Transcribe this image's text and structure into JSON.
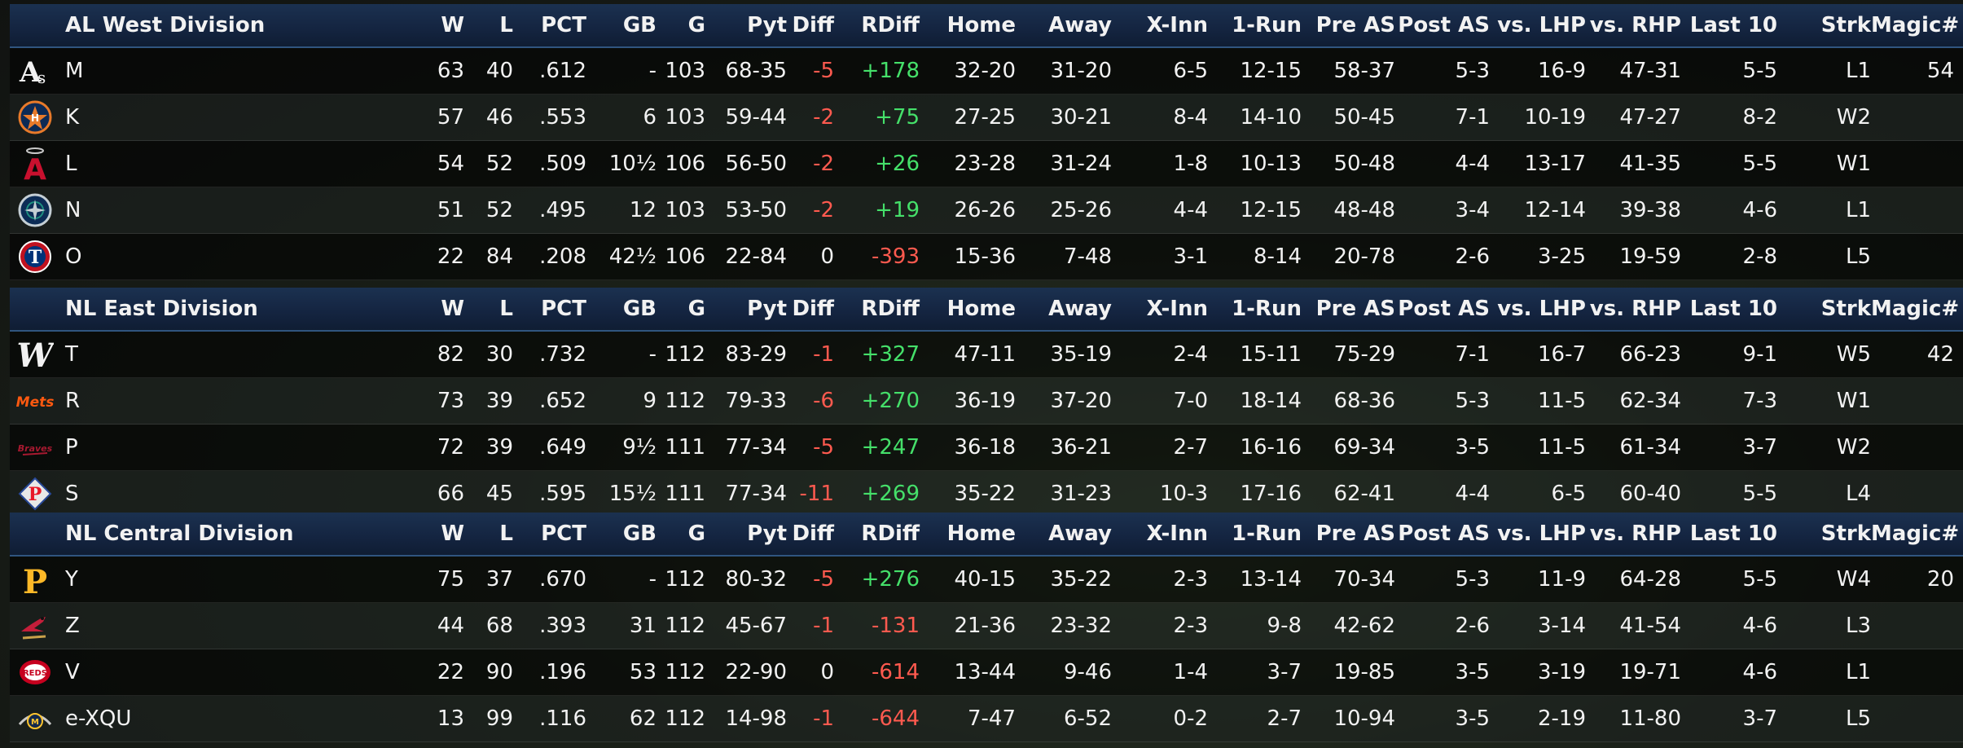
{
  "columns": {
    "w": "W",
    "l": "L",
    "pct": "PCT",
    "gb": "GB",
    "g": "G",
    "pyt": "Pyt",
    "diff": "Diff",
    "rdiff": "RDiff",
    "home": "Home",
    "away": "Away",
    "xinn": "X-Inn",
    "onerun": "1-Run",
    "preas": "Pre AS",
    "postas": "Post AS",
    "vlhp": "vs. LHP",
    "vrhp": "vs. RHP",
    "last10": "Last 10",
    "strk": "Strk",
    "magic": "Magic#"
  },
  "divisions": [
    {
      "name": "AL West Division",
      "teams": [
        {
          "logo": "athletics-logo",
          "name": "M",
          "w": "63",
          "l": "40",
          "pct": ".612",
          "gb": "-",
          "g": "103",
          "pyt": "68-35",
          "diff": "-5",
          "rdiff": "+178",
          "home": "32-20",
          "away": "31-20",
          "xinn": "6-5",
          "onerun": "12-15",
          "preas": "58-37",
          "postas": "5-3",
          "vlhp": "16-9",
          "vrhp": "47-31",
          "last10": "5-5",
          "strk": "L1",
          "magic": "54"
        },
        {
          "logo": "astros-logo",
          "name": "K",
          "w": "57",
          "l": "46",
          "pct": ".553",
          "gb": "6",
          "g": "103",
          "pyt": "59-44",
          "diff": "-2",
          "rdiff": "+75",
          "home": "27-25",
          "away": "30-21",
          "xinn": "8-4",
          "onerun": "14-10",
          "preas": "50-45",
          "postas": "7-1",
          "vlhp": "10-19",
          "vrhp": "47-27",
          "last10": "8-2",
          "strk": "W2",
          "magic": ""
        },
        {
          "logo": "angels-logo",
          "name": "L",
          "w": "54",
          "l": "52",
          "pct": ".509",
          "gb": "10½",
          "g": "106",
          "pyt": "56-50",
          "diff": "-2",
          "rdiff": "+26",
          "home": "23-28",
          "away": "31-24",
          "xinn": "1-8",
          "onerun": "10-13",
          "preas": "50-48",
          "postas": "4-4",
          "vlhp": "13-17",
          "vrhp": "41-35",
          "last10": "5-5",
          "strk": "W1",
          "magic": ""
        },
        {
          "logo": "mariners-logo",
          "name": "N",
          "w": "51",
          "l": "52",
          "pct": ".495",
          "gb": "12",
          "g": "103",
          "pyt": "53-50",
          "diff": "-2",
          "rdiff": "+19",
          "home": "26-26",
          "away": "25-26",
          "xinn": "4-4",
          "onerun": "12-15",
          "preas": "48-48",
          "postas": "3-4",
          "vlhp": "12-14",
          "vrhp": "39-38",
          "last10": "4-6",
          "strk": "L1",
          "magic": ""
        },
        {
          "logo": "rangers-logo",
          "name": "O",
          "w": "22",
          "l": "84",
          "pct": ".208",
          "gb": "42½",
          "g": "106",
          "pyt": "22-84",
          "diff": "0",
          "rdiff": "-393",
          "home": "15-36",
          "away": "7-48",
          "xinn": "3-1",
          "onerun": "8-14",
          "preas": "20-78",
          "postas": "2-6",
          "vlhp": "3-25",
          "vrhp": "19-59",
          "last10": "2-8",
          "strk": "L5",
          "magic": ""
        }
      ]
    },
    {
      "name": "NL East Division",
      "teams": [
        {
          "logo": "nationals-logo",
          "name": "T",
          "w": "82",
          "l": "30",
          "pct": ".732",
          "gb": "-",
          "g": "112",
          "pyt": "83-29",
          "diff": "-1",
          "rdiff": "+327",
          "home": "47-11",
          "away": "35-19",
          "xinn": "2-4",
          "onerun": "15-11",
          "preas": "75-29",
          "postas": "7-1",
          "vlhp": "16-7",
          "vrhp": "66-23",
          "last10": "9-1",
          "strk": "W5",
          "magic": "42"
        },
        {
          "logo": "mets-logo",
          "name": "R",
          "w": "73",
          "l": "39",
          "pct": ".652",
          "gb": "9",
          "g": "112",
          "pyt": "79-33",
          "diff": "-6",
          "rdiff": "+270",
          "home": "36-19",
          "away": "37-20",
          "xinn": "7-0",
          "onerun": "18-14",
          "preas": "68-36",
          "postas": "5-3",
          "vlhp": "11-5",
          "vrhp": "62-34",
          "last10": "7-3",
          "strk": "W1",
          "magic": ""
        },
        {
          "logo": "braves-logo",
          "name": "P",
          "w": "72",
          "l": "39",
          "pct": ".649",
          "gb": "9½",
          "g": "111",
          "pyt": "77-34",
          "diff": "-5",
          "rdiff": "+247",
          "home": "36-18",
          "away": "36-21",
          "xinn": "2-7",
          "onerun": "16-16",
          "preas": "69-34",
          "postas": "3-5",
          "vlhp": "11-5",
          "vrhp": "61-34",
          "last10": "3-7",
          "strk": "W2",
          "magic": ""
        },
        {
          "logo": "phillies-logo",
          "name": "S",
          "w": "66",
          "l": "45",
          "pct": ".595",
          "gb": "15½",
          "g": "111",
          "pyt": "77-34",
          "diff": "-11",
          "rdiff": "+269",
          "home": "35-22",
          "away": "31-23",
          "xinn": "10-3",
          "onerun": "17-16",
          "preas": "62-41",
          "postas": "4-4",
          "vlhp": "6-5",
          "vrhp": "60-40",
          "last10": "5-5",
          "strk": "L4",
          "magic": ""
        }
      ]
    },
    {
      "name": "NL Central Division",
      "teams": [
        {
          "logo": "pirates-logo",
          "name": "Y",
          "w": "75",
          "l": "37",
          "pct": ".670",
          "gb": "-",
          "g": "112",
          "pyt": "80-32",
          "diff": "-5",
          "rdiff": "+276",
          "home": "40-15",
          "away": "35-22",
          "xinn": "2-3",
          "onerun": "13-14",
          "preas": "70-34",
          "postas": "5-3",
          "vlhp": "11-9",
          "vrhp": "64-28",
          "last10": "5-5",
          "strk": "W4",
          "magic": "20"
        },
        {
          "logo": "cardinals-logo",
          "name": "Z",
          "w": "44",
          "l": "68",
          "pct": ".393",
          "gb": "31",
          "g": "112",
          "pyt": "45-67",
          "diff": "-1",
          "rdiff": "-131",
          "home": "21-36",
          "away": "23-32",
          "xinn": "2-3",
          "onerun": "9-8",
          "preas": "42-62",
          "postas": "2-6",
          "vlhp": "3-14",
          "vrhp": "41-54",
          "last10": "4-6",
          "strk": "L3",
          "magic": ""
        },
        {
          "logo": "reds-logo",
          "name": "V",
          "w": "22",
          "l": "90",
          "pct": ".196",
          "gb": "53",
          "g": "112",
          "pyt": "22-90",
          "diff": "0",
          "rdiff": "-614",
          "home": "13-44",
          "away": "9-46",
          "xinn": "1-4",
          "onerun": "3-7",
          "preas": "19-85",
          "postas": "3-5",
          "vlhp": "3-19",
          "vrhp": "19-71",
          "last10": "4-6",
          "strk": "L1",
          "magic": ""
        },
        {
          "logo": "brewers-logo",
          "name": "e-XQU",
          "w": "13",
          "l": "99",
          "pct": ".116",
          "gb": "62",
          "g": "112",
          "pyt": "14-98",
          "diff": "-1",
          "rdiff": "-644",
          "home": "7-47",
          "away": "6-52",
          "xinn": "0-2",
          "onerun": "2-7",
          "preas": "10-94",
          "postas": "3-5",
          "vlhp": "2-19",
          "vrhp": "11-80",
          "last10": "3-7",
          "strk": "L5",
          "magic": ""
        }
      ]
    }
  ]
}
